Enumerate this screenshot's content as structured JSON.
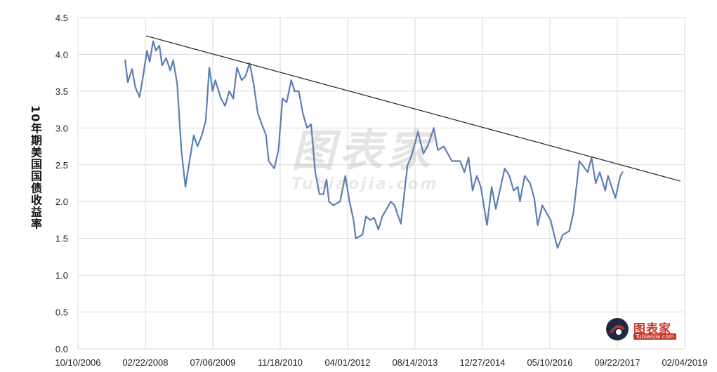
{
  "chart_data": {
    "type": "line",
    "title": "",
    "ylabel": "10年期美国国债收益率",
    "xlabel": "",
    "ylim": [
      0,
      4.5
    ],
    "yticks": [
      "0.0",
      "0.5",
      "1.0",
      "1.5",
      "2.0",
      "2.5",
      "3.0",
      "3.5",
      "4.0",
      "4.5"
    ],
    "xlim": [
      "2006-10-10",
      "2019-02-04"
    ],
    "xticks": [
      "10/10/2006",
      "02/22/2008",
      "07/06/2009",
      "11/18/2010",
      "04/01/2012",
      "08/14/2013",
      "12/27/2014",
      "05/10/2016",
      "09/22/2017",
      "02/04/2019"
    ],
    "grid": true,
    "series": [
      {
        "color": "#5b7fb4",
        "points": [
          [
            "2007-09-25",
            3.92
          ],
          [
            "2007-10-15",
            3.62
          ],
          [
            "2007-11-15",
            3.8
          ],
          [
            "2007-12-10",
            3.55
          ],
          [
            "2008-01-10",
            3.42
          ],
          [
            "2008-02-05",
            3.7
          ],
          [
            "2008-03-05",
            4.05
          ],
          [
            "2008-03-25",
            3.9
          ],
          [
            "2008-04-20",
            4.18
          ],
          [
            "2008-05-10",
            4.05
          ],
          [
            "2008-06-05",
            4.12
          ],
          [
            "2008-06-25",
            3.85
          ],
          [
            "2008-07-25",
            3.95
          ],
          [
            "2008-08-25",
            3.78
          ],
          [
            "2008-09-15",
            3.92
          ],
          [
            "2008-10-15",
            3.6
          ],
          [
            "2008-11-15",
            2.7
          ],
          [
            "2008-12-15",
            2.2
          ],
          [
            "2009-01-10",
            2.5
          ],
          [
            "2009-02-15",
            2.9
          ],
          [
            "2009-03-15",
            2.75
          ],
          [
            "2009-04-15",
            2.9
          ],
          [
            "2009-05-15",
            3.1
          ],
          [
            "2009-06-10",
            3.82
          ],
          [
            "2009-07-05",
            3.5
          ],
          [
            "2009-07-25",
            3.65
          ],
          [
            "2009-09-05",
            3.4
          ],
          [
            "2009-10-05",
            3.3
          ],
          [
            "2009-11-05",
            3.5
          ],
          [
            "2009-12-05",
            3.4
          ],
          [
            "2010-01-01",
            3.82
          ],
          [
            "2010-02-05",
            3.65
          ],
          [
            "2010-03-05",
            3.7
          ],
          [
            "2010-04-05",
            3.88
          ],
          [
            "2010-05-05",
            3.6
          ],
          [
            "2010-06-05",
            3.2
          ],
          [
            "2010-07-05",
            3.05
          ],
          [
            "2010-08-05",
            2.9
          ],
          [
            "2010-08-25",
            2.55
          ],
          [
            "2010-10-05",
            2.45
          ],
          [
            "2010-11-05",
            2.7
          ],
          [
            "2010-12-05",
            3.4
          ],
          [
            "2011-01-05",
            3.35
          ],
          [
            "2011-02-08",
            3.65
          ],
          [
            "2011-03-05",
            3.5
          ],
          [
            "2011-04-05",
            3.5
          ],
          [
            "2011-05-05",
            3.2
          ],
          [
            "2011-06-05",
            3.0
          ],
          [
            "2011-07-05",
            3.05
          ],
          [
            "2011-08-05",
            2.4
          ],
          [
            "2011-09-05",
            2.1
          ],
          [
            "2011-10-05",
            2.1
          ],
          [
            "2011-10-28",
            2.3
          ],
          [
            "2011-11-15",
            2.0
          ],
          [
            "2011-12-15",
            1.95
          ],
          [
            "2012-02-05",
            2.0
          ],
          [
            "2012-03-15",
            2.35
          ],
          [
            "2012-04-15",
            2.0
          ],
          [
            "2012-05-15",
            1.75
          ],
          [
            "2012-06-01",
            1.5
          ],
          [
            "2012-07-20",
            1.55
          ],
          [
            "2012-08-15",
            1.8
          ],
          [
            "2012-09-15",
            1.75
          ],
          [
            "2012-10-15",
            1.78
          ],
          [
            "2012-11-15",
            1.62
          ],
          [
            "2012-12-15",
            1.8
          ],
          [
            "2013-01-15",
            1.9
          ],
          [
            "2013-02-15",
            2.0
          ],
          [
            "2013-03-15",
            1.95
          ],
          [
            "2013-05-01",
            1.7
          ],
          [
            "2013-06-20",
            2.5
          ],
          [
            "2013-07-15",
            2.6
          ],
          [
            "2013-08-15",
            2.8
          ],
          [
            "2013-09-05",
            2.95
          ],
          [
            "2013-10-15",
            2.65
          ],
          [
            "2013-11-15",
            2.75
          ],
          [
            "2013-12-31",
            3.0
          ],
          [
            "2014-01-30",
            2.7
          ],
          [
            "2014-03-15",
            2.75
          ],
          [
            "2014-05-15",
            2.55
          ],
          [
            "2014-07-15",
            2.55
          ],
          [
            "2014-08-15",
            2.4
          ],
          [
            "2014-09-15",
            2.6
          ],
          [
            "2014-10-15",
            2.15
          ],
          [
            "2014-11-15",
            2.35
          ],
          [
            "2014-12-15",
            2.2
          ],
          [
            "2015-01-30",
            1.68
          ],
          [
            "2015-03-05",
            2.2
          ],
          [
            "2015-04-05",
            1.9
          ],
          [
            "2015-06-10",
            2.45
          ],
          [
            "2015-07-15",
            2.35
          ],
          [
            "2015-08-15",
            2.15
          ],
          [
            "2015-09-15",
            2.2
          ],
          [
            "2015-10-01",
            2.0
          ],
          [
            "2015-11-05",
            2.35
          ],
          [
            "2015-12-15",
            2.25
          ],
          [
            "2016-01-15",
            2.05
          ],
          [
            "2016-02-10",
            1.68
          ],
          [
            "2016-03-15",
            1.95
          ],
          [
            "2016-05-15",
            1.75
          ],
          [
            "2016-07-05",
            1.37
          ],
          [
            "2016-08-15",
            1.55
          ],
          [
            "2016-10-01",
            1.6
          ],
          [
            "2016-11-01",
            1.85
          ],
          [
            "2016-12-15",
            2.55
          ],
          [
            "2017-02-15",
            2.4
          ],
          [
            "2017-03-15",
            2.6
          ],
          [
            "2017-04-15",
            2.25
          ],
          [
            "2017-05-15",
            2.4
          ],
          [
            "2017-06-25",
            2.15
          ],
          [
            "2017-07-15",
            2.35
          ],
          [
            "2017-09-08",
            2.05
          ],
          [
            "2017-10-15",
            2.35
          ],
          [
            "2017-11-01",
            2.4
          ]
        ]
      },
      {
        "color": "#222222",
        "points": [
          [
            "2008-03-01",
            4.25
          ],
          [
            "2019-01-01",
            2.28
          ]
        ]
      }
    ]
  },
  "watermark": {
    "cn": "图表家",
    "en": "Tubiaojia.com"
  },
  "logo": {
    "cn": "图表家",
    "en": "Tubiaojia.com",
    "accent": "#c0392b"
  }
}
